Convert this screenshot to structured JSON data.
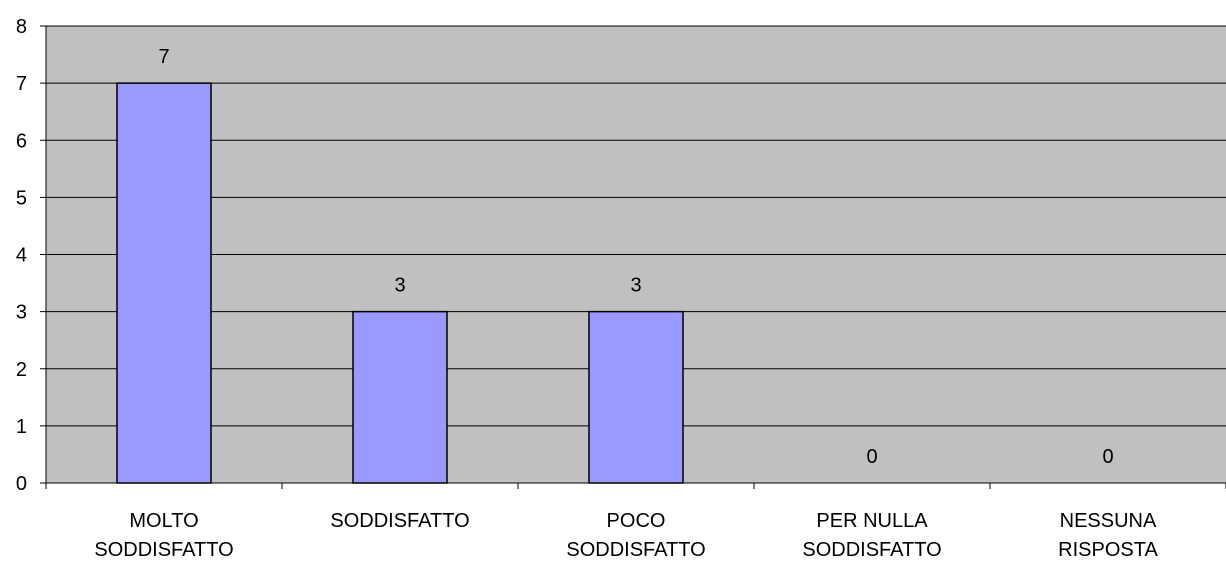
{
  "chart_data": {
    "type": "bar",
    "categories": [
      [
        "MOLTO",
        "SODDISFATTO"
      ],
      [
        "SODDISFATTO"
      ],
      [
        "POCO",
        "SODDISFATTO"
      ],
      [
        "PER NULLA",
        "SODDISFATTO"
      ],
      [
        "NESSUNA",
        "RISPOSTA"
      ]
    ],
    "values": [
      7,
      3,
      3,
      0,
      0
    ],
    "data_labels": [
      "7",
      "3",
      "3",
      "0",
      "0"
    ],
    "title": "",
    "xlabel": "",
    "ylabel": "",
    "ylim": [
      0,
      8
    ],
    "yticks": [
      "0",
      "1",
      "2",
      "3",
      "4",
      "5",
      "6",
      "7",
      "8"
    ],
    "grid": true,
    "legend": "none",
    "colors": {
      "plot_background": "#c0c0c0",
      "bar_fill": "#9999ff",
      "bar_stroke": "#000000",
      "gridline": "#000000",
      "axis": "#000000"
    }
  }
}
